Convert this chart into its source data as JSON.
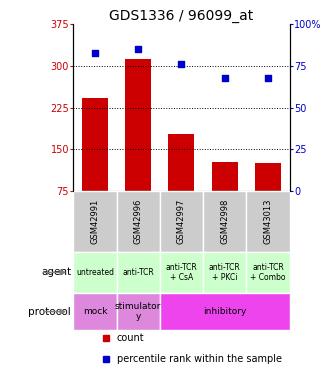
{
  "title": "GDS1336 / 96099_at",
  "samples": [
    "GSM42991",
    "GSM42996",
    "GSM42997",
    "GSM42998",
    "GSM43013"
  ],
  "bar_values": [
    243,
    312,
    178,
    128,
    125
  ],
  "bar_bottom": 75,
  "scatter_values": [
    83,
    85,
    76,
    68,
    68
  ],
  "bar_color": "#cc0000",
  "scatter_color": "#0000cc",
  "ylim_left": [
    75,
    375
  ],
  "ylim_right": [
    0,
    100
  ],
  "yticks_left": [
    75,
    150,
    225,
    300,
    375
  ],
  "yticks_right": [
    0,
    25,
    50,
    75,
    100
  ],
  "ytick_labels_right": [
    "0",
    "25",
    "50",
    "75",
    "100%"
  ],
  "gridlines": [
    150,
    225,
    300
  ],
  "agent_labels": [
    "untreated",
    "anti-TCR",
    "anti-TCR\n+ CsA",
    "anti-TCR\n+ PKCi",
    "anti-TCR\n+ Combo"
  ],
  "agent_color": "#ccffcc",
  "protocol_data": [
    {
      "label": "mock",
      "start": 0,
      "end": 0,
      "color": "#dd88dd"
    },
    {
      "label": "stimulator\ny",
      "start": 1,
      "end": 1,
      "color": "#dd88dd"
    },
    {
      "label": "inhibitory",
      "start": 2,
      "end": 4,
      "color": "#ee44ee"
    }
  ],
  "sample_bg_color": "#cccccc",
  "legend_count_color": "#cc0000",
  "legend_pct_color": "#0000cc",
  "bg_color": "#ffffff"
}
